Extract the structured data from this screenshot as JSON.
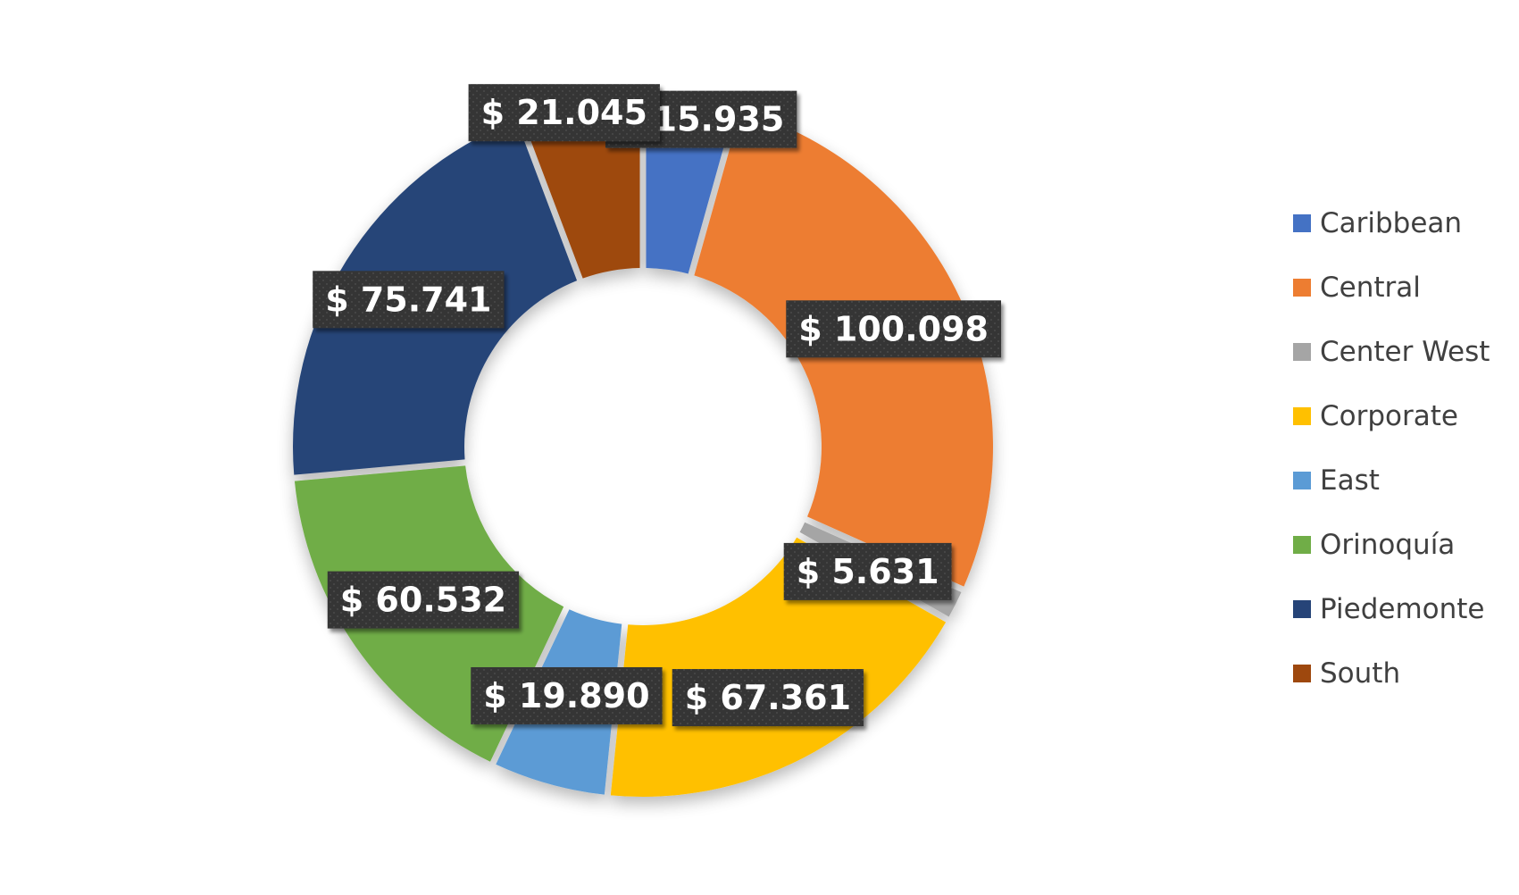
{
  "chart_data": {
    "type": "pie",
    "subtype": "doughnut",
    "title": "",
    "categories": [
      "Caribbean",
      "Central",
      "Center West",
      "Corporate",
      "East",
      "Orinoquía",
      "Piedemonte",
      "South"
    ],
    "values": [
      15935,
      100098,
      5631,
      67361,
      19890,
      60532,
      75741,
      21045
    ],
    "data_labels": [
      "$ 15.935",
      "$ 100.098",
      "$ 5.631",
      "$ 67.361",
      "$ 19.890",
      "$ 60.532",
      "$ 75.741",
      "$ 21.045"
    ],
    "colors": [
      "#4472C4",
      "#ED7D31",
      "#A5A5A5",
      "#FFC000",
      "#5B9BD5",
      "#70AD47",
      "#264478",
      "#9E480E"
    ],
    "legend": {
      "position": "right",
      "entries": [
        "Caribbean",
        "Central",
        "Center West",
        "Corporate",
        "East",
        "Orinoquía",
        "Piedemonte",
        "South"
      ]
    },
    "label_style": {
      "background": "#3a3a3a",
      "text_color": "#ffffff"
    }
  }
}
